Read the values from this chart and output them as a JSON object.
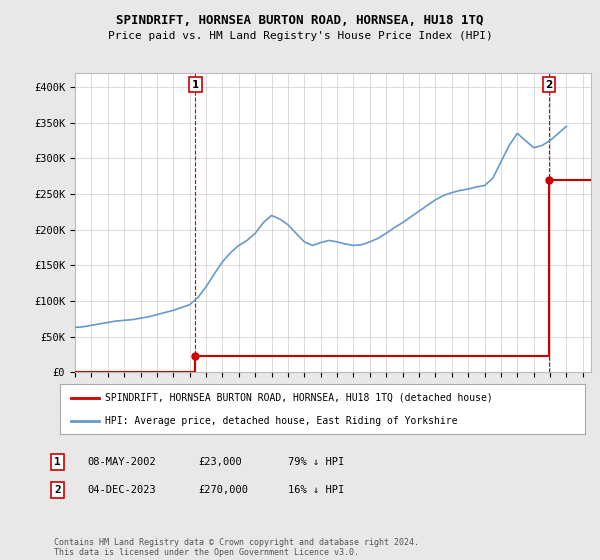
{
  "title": "SPINDRIFT, HORNSEA BURTON ROAD, HORNSEA, HU18 1TQ",
  "subtitle": "Price paid vs. HM Land Registry's House Price Index (HPI)",
  "ylabel_ticks": [
    "£0",
    "£50K",
    "£100K",
    "£150K",
    "£200K",
    "£250K",
    "£300K",
    "£350K",
    "£400K"
  ],
  "ylim": [
    0,
    420000
  ],
  "xlim_start": 1995,
  "xlim_end": 2026.5,
  "sale1_date": 2002.35,
  "sale1_price": 23000,
  "sale2_date": 2023.92,
  "sale2_price": 270000,
  "hpi_color": "#6699cc",
  "sale_color": "#cc0000",
  "background_color": "#e8e8e8",
  "plot_bg_color": "#ffffff",
  "legend_label1": "SPINDRIFT, HORNSEA BURTON ROAD, HORNSEA, HU18 1TQ (detached house)",
  "legend_label2": "HPI: Average price, detached house, East Riding of Yorkshire",
  "table_row1": [
    "1",
    "08-MAY-2002",
    "£23,000",
    "79% ↓ HPI"
  ],
  "table_row2": [
    "2",
    "04-DEC-2023",
    "£270,000",
    "16% ↓ HPI"
  ],
  "footnote": "Contains HM Land Registry data © Crown copyright and database right 2024.\nThis data is licensed under the Open Government Licence v3.0.",
  "hpi_years": [
    1995,
    1995.5,
    1996,
    1996.5,
    1997,
    1997.5,
    1998,
    1998.5,
    1999,
    1999.5,
    2000,
    2000.5,
    2001,
    2001.5,
    2002,
    2002.5,
    2003,
    2003.5,
    2004,
    2004.5,
    2005,
    2005.5,
    2006,
    2006.5,
    2007,
    2007.5,
    2008,
    2008.5,
    2009,
    2009.5,
    2010,
    2010.5,
    2011,
    2011.5,
    2012,
    2012.5,
    2013,
    2013.5,
    2014,
    2014.5,
    2015,
    2015.5,
    2016,
    2016.5,
    2017,
    2017.5,
    2018,
    2018.5,
    2019,
    2019.5,
    2020,
    2020.5,
    2021,
    2021.5,
    2022,
    2022.5,
    2023,
    2023.5,
    2024,
    2024.5,
    2025
  ],
  "hpi_values": [
    63000,
    64000,
    66000,
    68000,
    70000,
    72000,
    73000,
    74000,
    76000,
    78000,
    81000,
    84000,
    87000,
    91000,
    95000,
    105000,
    120000,
    138000,
    155000,
    168000,
    178000,
    185000,
    195000,
    210000,
    220000,
    215000,
    207000,
    195000,
    183000,
    178000,
    182000,
    185000,
    183000,
    180000,
    178000,
    179000,
    183000,
    188000,
    195000,
    203000,
    210000,
    218000,
    226000,
    234000,
    242000,
    248000,
    252000,
    255000,
    257000,
    260000,
    262000,
    272000,
    295000,
    318000,
    335000,
    325000,
    315000,
    318000,
    325000,
    335000,
    345000
  ]
}
